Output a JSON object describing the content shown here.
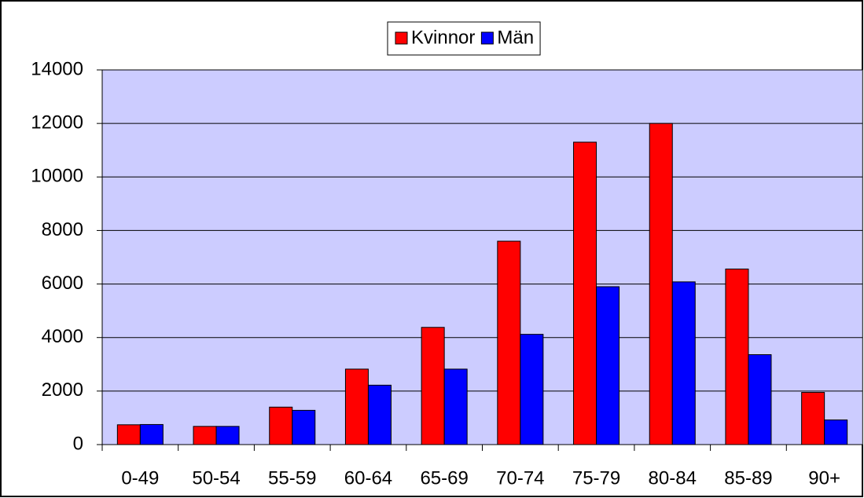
{
  "chart_data": {
    "type": "bar",
    "categories": [
      "0-49",
      "50-54",
      "55-59",
      "60-64",
      "65-69",
      "70-74",
      "75-79",
      "80-84",
      "85-89",
      "90+"
    ],
    "series": [
      {
        "name": "Kvinnor",
        "color": "#ff0000",
        "values": [
          740,
          680,
          1400,
          2820,
          4380,
          7600,
          11300,
          12000,
          6560,
          1950
        ]
      },
      {
        "name": "Män",
        "color": "#0000ff",
        "values": [
          750,
          680,
          1280,
          2220,
          2820,
          4120,
          5900,
          6080,
          3360,
          920
        ]
      }
    ],
    "ylim": [
      0,
      14000
    ],
    "yticks": [
      0,
      2000,
      4000,
      6000,
      8000,
      10000,
      12000,
      14000
    ],
    "grid": true,
    "legend": "top",
    "plot_background": "#ccccff"
  }
}
